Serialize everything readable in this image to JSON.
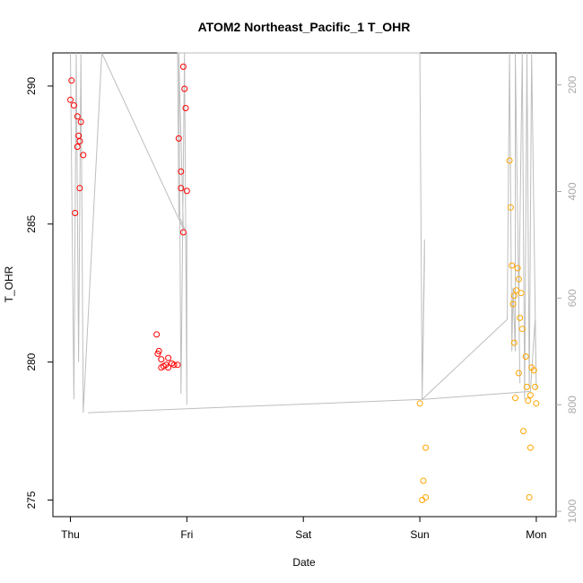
{
  "chart_data": {
    "type": "scatter",
    "title": "ATOM2 Northeast_Pacific_1 T_OHR",
    "xlabel": "Date",
    "ylabel": "T_OHR",
    "x_ticks": [
      {
        "pos": 0,
        "label": "Thu"
      },
      {
        "pos": 1,
        "label": "Fri"
      },
      {
        "pos": 2,
        "label": "Sat"
      },
      {
        "pos": 3,
        "label": "Sun"
      },
      {
        "pos": 4,
        "label": "Mon"
      }
    ],
    "xlim": [
      -0.15,
      4.17
    ],
    "ylim": [
      274.4,
      291.2
    ],
    "y_ticks": [
      275,
      280,
      285,
      290
    ],
    "y2_ticks": [
      200,
      400,
      600,
      800,
      1000
    ],
    "y2lim": [
      1010,
      140
    ],
    "y2_reversed": true,
    "grid": false,
    "colors": {
      "series_a": "#ff0000",
      "series_b": "#ffa500",
      "line": "#bebebe"
    },
    "series": [
      {
        "color": "#ff0000",
        "points": [
          [
            0.01,
            290.2
          ],
          [
            0.0,
            289.5
          ],
          [
            0.03,
            289.3
          ],
          [
            0.06,
            288.9
          ],
          [
            0.09,
            288.7
          ],
          [
            0.07,
            288.2
          ],
          [
            0.08,
            288.0
          ],
          [
            0.06,
            287.8
          ],
          [
            0.11,
            287.5
          ],
          [
            0.08,
            286.3
          ],
          [
            0.04,
            285.4
          ],
          [
            0.74,
            281.0
          ],
          [
            0.76,
            280.4
          ],
          [
            0.75,
            280.3
          ],
          [
            0.78,
            280.1
          ],
          [
            0.84,
            280.15
          ],
          [
            0.8,
            279.85
          ],
          [
            0.78,
            279.8
          ],
          [
            0.82,
            279.9
          ],
          [
            0.84,
            279.8
          ],
          [
            0.87,
            279.95
          ],
          [
            0.89,
            279.9
          ],
          [
            0.92,
            279.9
          ],
          [
            0.97,
            290.7
          ],
          [
            0.98,
            289.9
          ],
          [
            0.99,
            289.2
          ],
          [
            0.93,
            288.1
          ],
          [
            0.95,
            286.9
          ],
          [
            0.95,
            286.3
          ],
          [
            1.0,
            286.2
          ],
          [
            0.97,
            284.7
          ]
        ]
      },
      {
        "color": "#ffa500",
        "points": [
          [
            3.0,
            278.5
          ],
          [
            3.05,
            276.9
          ],
          [
            3.03,
            275.7
          ],
          [
            3.05,
            275.1
          ],
          [
            3.02,
            275.0
          ],
          [
            3.77,
            287.3
          ],
          [
            3.78,
            285.6
          ],
          [
            3.79,
            283.5
          ],
          [
            3.84,
            283.4
          ],
          [
            3.85,
            283.0
          ],
          [
            3.83,
            282.6
          ],
          [
            3.81,
            282.4
          ],
          [
            3.87,
            282.5
          ],
          [
            3.8,
            282.1
          ],
          [
            3.88,
            281.2
          ],
          [
            3.86,
            281.6
          ],
          [
            3.81,
            280.7
          ],
          [
            3.91,
            280.2
          ],
          [
            3.96,
            279.8
          ],
          [
            3.98,
            279.7
          ],
          [
            3.85,
            279.6
          ],
          [
            3.92,
            279.1
          ],
          [
            3.99,
            279.1
          ],
          [
            3.95,
            278.8
          ],
          [
            3.82,
            278.7
          ],
          [
            3.93,
            278.6
          ],
          [
            4.0,
            278.5
          ],
          [
            3.89,
            277.5
          ],
          [
            3.95,
            276.9
          ],
          [
            3.94,
            275.1
          ]
        ]
      }
    ],
    "line_right_axis": [
      [
        0.0,
        140
      ],
      [
        0.03,
        790
      ],
      [
        0.05,
        140
      ],
      [
        0.07,
        720
      ],
      [
        0.09,
        140
      ],
      [
        0.11,
        815
      ],
      [
        0.27,
        140
      ],
      [
        0.97,
        470
      ],
      [
        0.93,
        140
      ],
      [
        0.95,
        780
      ],
      [
        0.98,
        140
      ],
      [
        1.0,
        800
      ],
      [
        1.0,
        480
      ],
      [
        0.93,
        445
      ],
      [
        0.92,
        140
      ],
      [
        3.0,
        140
      ],
      [
        3.02,
        790
      ],
      [
        3.04,
        490
      ],
      [
        3.04,
        530
      ],
      [
        3.02,
        790
      ],
      [
        3.75,
        640
      ],
      [
        3.77,
        140
      ],
      [
        3.79,
        700
      ],
      [
        3.8,
        580
      ],
      [
        3.82,
        700
      ],
      [
        3.82,
        140
      ],
      [
        3.86,
        760
      ],
      [
        3.85,
        620
      ],
      [
        3.88,
        140
      ],
      [
        3.9,
        790
      ],
      [
        3.92,
        140
      ],
      [
        3.94,
        770
      ],
      [
        3.96,
        140
      ],
      [
        4.0,
        770
      ],
      [
        3.99,
        640
      ],
      [
        3.95,
        775
      ],
      [
        3.03,
        790
      ],
      [
        0.15,
        815
      ]
    ]
  }
}
